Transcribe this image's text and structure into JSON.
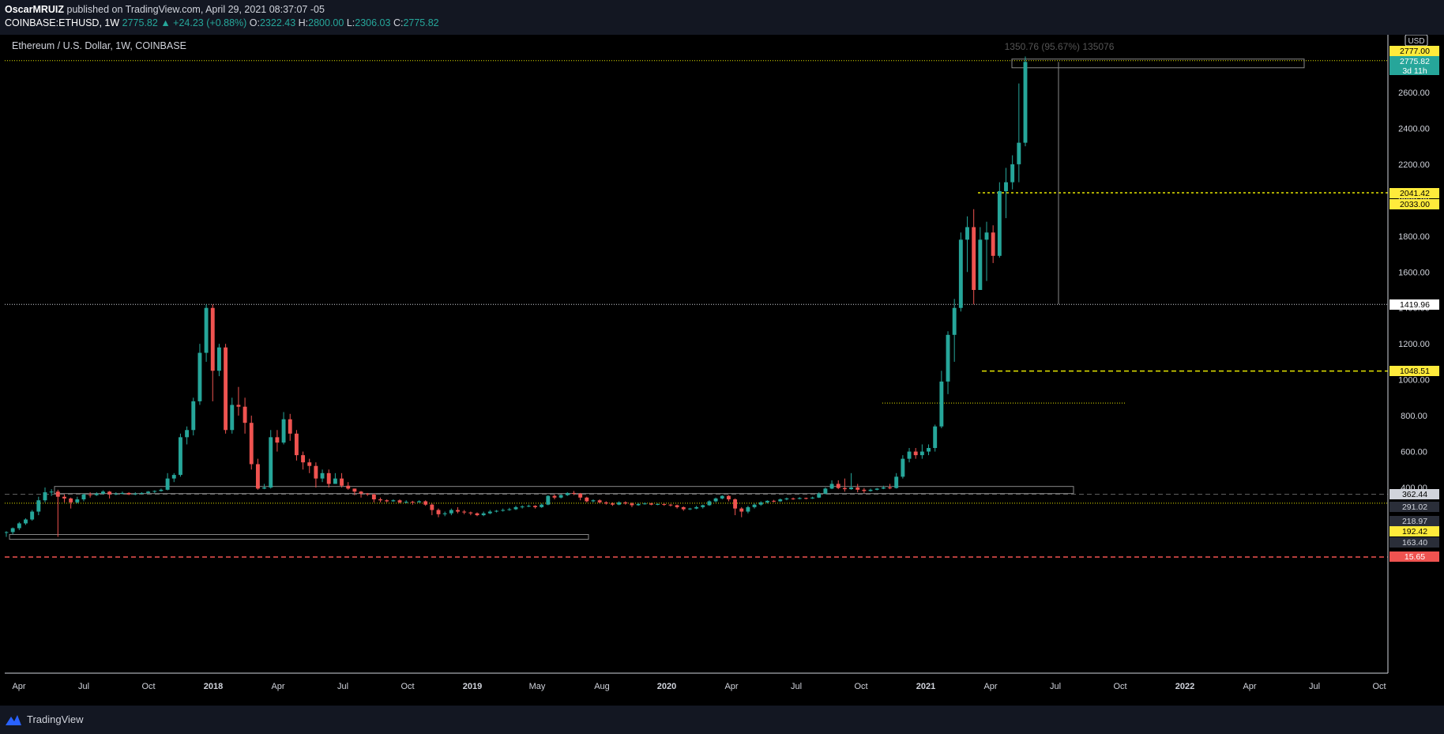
{
  "header": {
    "publisher": "OscarMRUIZ",
    "published_text": "published on TradingView.com, April 29, 2021 08:37:07 -05",
    "symbol": "COINBASE:ETHUSD, 1W",
    "last": "2775.82",
    "change": "▲ +24.23 (+0.88%)",
    "o_label": "O:",
    "o": "2322.43",
    "h_label": "H:",
    "h": "2800.00",
    "l_label": "L:",
    "l": "2306.03",
    "c_label": "C:",
    "c": "2775.82"
  },
  "chart_title": "Ethereum / U.S. Dollar, 1W, COINBASE",
  "footer": {
    "brand": "TradingView"
  },
  "chart_data": {
    "type": "candlestick",
    "currency": "USD",
    "y_ticks": [
      400,
      600,
      800,
      1000,
      1200,
      1400,
      1600,
      1800,
      2000,
      2200,
      2400,
      2600
    ],
    "x_ticks": [
      "Apr",
      "Jul",
      "Oct",
      "2018",
      "Apr",
      "Jul",
      "Oct",
      "2019",
      "May",
      "Aug",
      "2020",
      "Apr",
      "Jul",
      "Oct",
      "2021",
      "Apr",
      "Jul",
      "Oct",
      "2022",
      "Apr",
      "Jul",
      "Oct"
    ],
    "price_labels": [
      {
        "value": "2777.00",
        "style": "yellow"
      },
      {
        "value": "2775.82",
        "sub": "3d 11h",
        "style": "teal"
      },
      {
        "value": "2041.42",
        "style": "yellow"
      },
      {
        "value": "2033.00",
        "style": "yellow"
      },
      {
        "value": "1419.96",
        "style": "white"
      },
      {
        "value": "1048.51",
        "style": "yellow"
      },
      {
        "value": "362.44",
        "style": "gray"
      },
      {
        "value": "291.02",
        "style": "dark"
      },
      {
        "value": "218.97",
        "style": "dark"
      },
      {
        "value": "192.42",
        "style": "yellow"
      },
      {
        "value": "163.40",
        "style": "dark"
      },
      {
        "value": "15.65",
        "style": "red"
      }
    ],
    "measure_label": "1350.76 (95.67%) 135076",
    "colors": {
      "up": "#26a69a",
      "down": "#ef5350",
      "grid_yellow": "#e6e600",
      "axis_bg": "#000000"
    },
    "candles": [
      [
        50,
        50,
        40,
        52
      ],
      [
        50,
        60,
        45,
        62
      ],
      [
        60,
        75,
        55,
        80
      ],
      [
        75,
        90,
        70,
        95
      ],
      [
        90,
        130,
        85,
        140
      ],
      [
        130,
        220,
        110,
        260
      ],
      [
        220,
        320,
        200,
        400
      ],
      [
        320,
        330,
        270,
        370
      ],
      [
        330,
        260,
        40,
        360
      ],
      [
        260,
        240,
        200,
        290
      ],
      [
        240,
        200,
        150,
        250
      ],
      [
        200,
        230,
        190,
        260
      ],
      [
        230,
        290,
        210,
        300
      ],
      [
        290,
        280,
        250,
        320
      ],
      [
        280,
        300,
        270,
        320
      ],
      [
        300,
        330,
        290,
        350
      ],
      [
        330,
        290,
        240,
        340
      ],
      [
        290,
        300,
        280,
        320
      ],
      [
        300,
        310,
        290,
        330
      ],
      [
        310,
        290,
        280,
        320
      ],
      [
        290,
        300,
        280,
        320
      ],
      [
        300,
        310,
        290,
        320
      ],
      [
        310,
        330,
        300,
        340
      ],
      [
        330,
        340,
        310,
        350
      ],
      [
        340,
        360,
        330,
        380
      ],
      [
        360,
        450,
        350,
        480
      ],
      [
        450,
        470,
        430,
        480
      ],
      [
        470,
        680,
        460,
        700
      ],
      [
        680,
        720,
        640,
        740
      ],
      [
        720,
        880,
        690,
        900
      ],
      [
        880,
        1150,
        860,
        1200
      ],
      [
        1150,
        1400,
        1100,
        1420
      ],
      [
        1400,
        1050,
        880,
        1420
      ],
      [
        1050,
        1180,
        1020,
        1200
      ],
      [
        1180,
        720,
        700,
        1200
      ],
      [
        720,
        860,
        700,
        900
      ],
      [
        860,
        850,
        800,
        960
      ],
      [
        850,
        760,
        700,
        900
      ],
      [
        760,
        530,
        500,
        800
      ],
      [
        530,
        380,
        360,
        560
      ],
      [
        380,
        400,
        370,
        420
      ],
      [
        400,
        680,
        380,
        720
      ],
      [
        680,
        650,
        600,
        720
      ],
      [
        650,
        780,
        640,
        820
      ],
      [
        780,
        700,
        660,
        810
      ],
      [
        700,
        580,
        550,
        720
      ],
      [
        580,
        540,
        500,
        600
      ],
      [
        540,
        520,
        480,
        560
      ],
      [
        520,
        450,
        400,
        540
      ],
      [
        450,
        480,
        430,
        500
      ],
      [
        480,
        420,
        400,
        500
      ],
      [
        420,
        450,
        420,
        480
      ],
      [
        450,
        410,
        400,
        480
      ],
      [
        410,
        380,
        360,
        430
      ],
      [
        380,
        330,
        280,
        380
      ],
      [
        330,
        300,
        250,
        340
      ],
      [
        300,
        290,
        270,
        310
      ],
      [
        290,
        230,
        200,
        300
      ],
      [
        230,
        220,
        200,
        250
      ],
      [
        220,
        210,
        200,
        230
      ],
      [
        210,
        220,
        205,
        230
      ],
      [
        220,
        200,
        190,
        230
      ],
      [
        200,
        205,
        190,
        220
      ],
      [
        205,
        200,
        180,
        215
      ],
      [
        200,
        210,
        200,
        220
      ],
      [
        210,
        180,
        170,
        220
      ],
      [
        180,
        140,
        110,
        190
      ],
      [
        140,
        115,
        100,
        150
      ],
      [
        115,
        120,
        105,
        130
      ],
      [
        120,
        140,
        110,
        150
      ],
      [
        140,
        130,
        120,
        160
      ],
      [
        130,
        125,
        115,
        140
      ],
      [
        125,
        120,
        110,
        130
      ],
      [
        120,
        110,
        105,
        125
      ],
      [
        110,
        120,
        105,
        130
      ],
      [
        120,
        130,
        115,
        140
      ],
      [
        130,
        135,
        125,
        140
      ],
      [
        135,
        140,
        130,
        150
      ],
      [
        140,
        145,
        135,
        155
      ],
      [
        145,
        160,
        140,
        170
      ],
      [
        160,
        165,
        150,
        175
      ],
      [
        165,
        170,
        160,
        180
      ],
      [
        170,
        160,
        150,
        175
      ],
      [
        160,
        180,
        155,
        190
      ],
      [
        180,
        270,
        175,
        280
      ],
      [
        270,
        250,
        230,
        290
      ],
      [
        250,
        280,
        240,
        290
      ],
      [
        280,
        310,
        270,
        320
      ],
      [
        310,
        300,
        280,
        340
      ],
      [
        300,
        250,
        220,
        310
      ],
      [
        250,
        210,
        200,
        260
      ],
      [
        210,
        220,
        200,
        230
      ],
      [
        220,
        200,
        190,
        230
      ],
      [
        200,
        190,
        180,
        210
      ],
      [
        190,
        180,
        170,
        200
      ],
      [
        180,
        200,
        175,
        210
      ],
      [
        200,
        190,
        180,
        210
      ],
      [
        190,
        175,
        160,
        200
      ],
      [
        175,
        185,
        170,
        195
      ],
      [
        185,
        190,
        180,
        200
      ],
      [
        190,
        180,
        175,
        195
      ],
      [
        180,
        185,
        175,
        190
      ],
      [
        185,
        180,
        170,
        190
      ],
      [
        180,
        175,
        165,
        185
      ],
      [
        175,
        160,
        150,
        180
      ],
      [
        160,
        145,
        135,
        165
      ],
      [
        145,
        150,
        140,
        155
      ],
      [
        150,
        160,
        145,
        170
      ],
      [
        160,
        175,
        150,
        180
      ],
      [
        175,
        210,
        170,
        220
      ],
      [
        210,
        240,
        200,
        250
      ],
      [
        240,
        270,
        230,
        280
      ],
      [
        270,
        230,
        210,
        280
      ],
      [
        230,
        150,
        110,
        240
      ],
      [
        150,
        130,
        100,
        160
      ],
      [
        130,
        160,
        120,
        170
      ],
      [
        160,
        180,
        150,
        190
      ],
      [
        180,
        200,
        170,
        210
      ],
      [
        200,
        215,
        190,
        220
      ],
      [
        215,
        210,
        200,
        225
      ],
      [
        210,
        230,
        205,
        240
      ],
      [
        230,
        240,
        220,
        250
      ],
      [
        240,
        235,
        225,
        250
      ],
      [
        235,
        245,
        230,
        255
      ],
      [
        245,
        240,
        230,
        250
      ],
      [
        240,
        250,
        235,
        260
      ],
      [
        250,
        300,
        245,
        320
      ],
      [
        300,
        380,
        290,
        400
      ],
      [
        380,
        420,
        370,
        440
      ],
      [
        420,
        390,
        370,
        440
      ],
      [
        390,
        370,
        330,
        450
      ],
      [
        370,
        400,
        360,
        480
      ],
      [
        400,
        360,
        320,
        420
      ],
      [
        360,
        340,
        310,
        390
      ],
      [
        340,
        360,
        330,
        380
      ],
      [
        360,
        380,
        350,
        390
      ],
      [
        380,
        400,
        370,
        410
      ],
      [
        400,
        390,
        370,
        420
      ],
      [
        390,
        460,
        380,
        480
      ],
      [
        460,
        560,
        450,
        580
      ],
      [
        560,
        600,
        540,
        620
      ],
      [
        600,
        580,
        560,
        620
      ],
      [
        580,
        600,
        560,
        640
      ],
      [
        600,
        620,
        580,
        640
      ],
      [
        620,
        740,
        600,
        750
      ],
      [
        740,
        990,
        730,
        1050
      ],
      [
        990,
        1250,
        920,
        1270
      ],
      [
        1250,
        1400,
        1100,
        1450
      ],
      [
        1400,
        1780,
        1380,
        1820
      ],
      [
        1780,
        1850,
        1600,
        1910
      ],
      [
        1850,
        1500,
        1420,
        1950
      ],
      [
        1500,
        1780,
        1520,
        1850
      ],
      [
        1780,
        1820,
        1550,
        1880
      ],
      [
        1820,
        1690,
        1650,
        1860
      ],
      [
        1690,
        2050,
        1680,
        2100
      ],
      [
        2050,
        2100,
        1900,
        2180
      ],
      [
        2100,
        2200,
        2060,
        2250
      ],
      [
        2200,
        2320,
        2100,
        2650
      ],
      [
        2320,
        2770,
        2300,
        2800
      ]
    ]
  }
}
